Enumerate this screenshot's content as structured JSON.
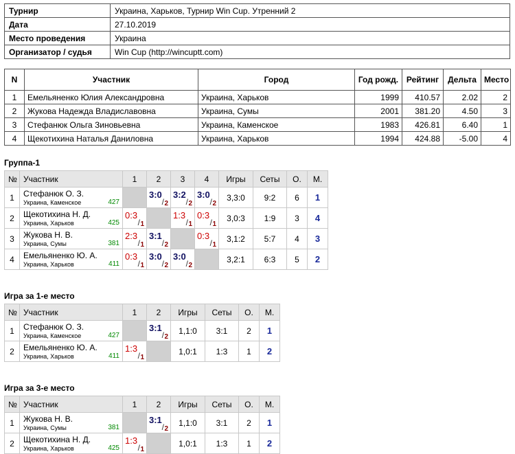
{
  "info": {
    "rows": [
      [
        "Турнир",
        "Украина, Харьков, Турнир Win Cup. Утренний 2"
      ],
      [
        "Дата",
        "27.10.2019"
      ],
      [
        "Место проведения",
        "Украина"
      ],
      [
        "Организатор / судья",
        "Win Cup (http://wincuptt.com)"
      ]
    ]
  },
  "participants": {
    "header": [
      "N",
      "Участник",
      "Город",
      "Год рожд.",
      "Рейтинг",
      "Дельта",
      "Место"
    ],
    "rows": [
      [
        "1",
        "Емельяненко Юлия Александровна",
        "Украина, Харьков",
        "1999",
        "410.57",
        "2.02",
        "2"
      ],
      [
        "2",
        "Жукова Надежда Владиславовна",
        "Украина, Сумы",
        "2001",
        "381.20",
        "4.50",
        "3"
      ],
      [
        "3",
        "Стефанюк Ольга Зиновьевна",
        "Украина, Каменское",
        "1983",
        "426.81",
        "6.40",
        "1"
      ],
      [
        "4",
        "Щекотихина Наталья Даниловна",
        "Украина, Харьков",
        "1994",
        "424.88",
        "-5.00",
        "4"
      ]
    ]
  },
  "groups": [
    {
      "title": "Группа-1",
      "header": [
        "№",
        "Участник",
        "1",
        "2",
        "3",
        "4",
        "Игры",
        "Сеты",
        "О.",
        "М."
      ],
      "rows": [
        {
          "n": "1",
          "name": "Стефанюк О. З.",
          "city": "Украина, Каменское",
          "rating": "427",
          "cells": [
            null,
            {
              "score": "3:0",
              "pts": "2"
            },
            {
              "score": "3:2",
              "pts": "2"
            },
            {
              "score": "3:0",
              "pts": "2"
            }
          ],
          "games": "3,3:0",
          "sets": "9:2",
          "points": "6",
          "place": "1"
        },
        {
          "n": "2",
          "name": "Щекотихина Н. Д.",
          "city": "Украина, Харьков",
          "rating": "425",
          "cells": [
            {
              "score": "0:3",
              "pts": "1"
            },
            null,
            {
              "score": "1:3",
              "pts": "1"
            },
            {
              "score": "0:3",
              "pts": "1"
            }
          ],
          "games": "3,0:3",
          "sets": "1:9",
          "points": "3",
          "place": "4"
        },
        {
          "n": "3",
          "name": "Жукова Н. В.",
          "city": "Украина, Сумы",
          "rating": "381",
          "cells": [
            {
              "score": "2:3",
              "pts": "1"
            },
            {
              "score": "3:1",
              "pts": "2"
            },
            null,
            {
              "score": "0:3",
              "pts": "1"
            }
          ],
          "games": "3,1:2",
          "sets": "5:7",
          "points": "4",
          "place": "3"
        },
        {
          "n": "4",
          "name": "Емельяненко Ю. А.",
          "city": "Украина, Харьков",
          "rating": "411",
          "cells": [
            {
              "score": "0:3",
              "pts": "1"
            },
            {
              "score": "3:0",
              "pts": "2"
            },
            {
              "score": "3:0",
              "pts": "2"
            },
            null
          ],
          "games": "3,2:1",
          "sets": "6:3",
          "points": "5",
          "place": "2"
        }
      ]
    },
    {
      "title": "Игра за 1-е место",
      "header": [
        "№",
        "Участник",
        "1",
        "2",
        "Игры",
        "Сеты",
        "О.",
        "М."
      ],
      "rows": [
        {
          "n": "1",
          "name": "Стефанюк О. З.",
          "city": "Украина, Каменское",
          "rating": "427",
          "cells": [
            null,
            {
              "score": "3:1",
              "pts": "2"
            }
          ],
          "games": "1,1:0",
          "sets": "3:1",
          "points": "2",
          "place": "1"
        },
        {
          "n": "2",
          "name": "Емельяненко Ю. А.",
          "city": "Украина, Харьков",
          "rating": "411",
          "cells": [
            {
              "score": "1:3",
              "pts": "1"
            },
            null
          ],
          "games": "1,0:1",
          "sets": "1:3",
          "points": "1",
          "place": "2"
        }
      ]
    },
    {
      "title": "Игра за 3-е место",
      "header": [
        "№",
        "Участник",
        "1",
        "2",
        "Игры",
        "Сеты",
        "О.",
        "М."
      ],
      "rows": [
        {
          "n": "1",
          "name": "Жукова Н. В.",
          "city": "Украина, Сумы",
          "rating": "381",
          "cells": [
            null,
            {
              "score": "3:1",
              "pts": "2"
            }
          ],
          "games": "1,1:0",
          "sets": "3:1",
          "points": "2",
          "place": "1"
        },
        {
          "n": "2",
          "name": "Щекотихина Н. Д.",
          "city": "Украина, Харьков",
          "rating": "425",
          "cells": [
            {
              "score": "1:3",
              "pts": "1"
            },
            null
          ],
          "games": "1,0:1",
          "sets": "1:3",
          "points": "1",
          "place": "2"
        }
      ]
    }
  ]
}
